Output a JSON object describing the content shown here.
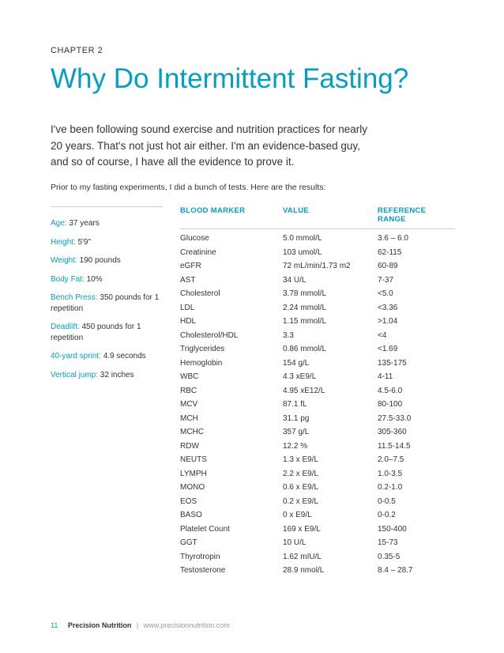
{
  "chapter": {
    "label": "CHAPTER 2",
    "title": "Why Do Intermittent Fasting?"
  },
  "lede": "I've been following sound exercise and nutrition practices for nearly 20 years. That's not just hot air either. I'm an evidence-based guy, and so of course, I have all the evidence to prove it.",
  "sublede": "Prior to my fasting experiments, I did a bunch of tests. Here are the results:",
  "stats": [
    {
      "label": "Age:",
      "value": " 37 years"
    },
    {
      "label": "Height:",
      "value": " 5'9\""
    },
    {
      "label": "Weight:",
      "value": " 190 pounds"
    },
    {
      "label": "Body Fat:",
      "value": " 10%"
    },
    {
      "label": "Bench Press:",
      "value": " 350 pounds for 1 repetition"
    },
    {
      "label": "Deadlift:",
      "value": " 450 pounds for 1 repetition"
    },
    {
      "label": "40-yard sprint:",
      "value": " 4.9 seconds"
    },
    {
      "label": "Vertical jump:",
      "value": " 32 inches"
    }
  ],
  "table": {
    "headers": {
      "marker": "BLOOD MARKER",
      "value": "VALUE",
      "range": "REFERENCE RANGE"
    },
    "rows": [
      {
        "marker": "Glucose",
        "value": "5.0 mmol/L",
        "range": "3.6 – 6.0"
      },
      {
        "marker": "Creatinine",
        "value": "103 umol/L",
        "range": "62-115"
      },
      {
        "marker": "eGFR",
        "value": "72 mL/min/1.73 m2",
        "range": "60-89"
      },
      {
        "marker": "AST",
        "value": "34 U/L",
        "range": "7-37"
      },
      {
        "marker": "Cholesterol",
        "value": "3.78 mmol/L",
        "range": "<5.0"
      },
      {
        "marker": "LDL",
        "value": "2.24 mmol/L",
        "range": "<3.36"
      },
      {
        "marker": "HDL",
        "value": "1.15 mmol/L",
        "range": ">1.04"
      },
      {
        "marker": "Cholesterol/HDL",
        "value": "3.3",
        "range": "<4"
      },
      {
        "marker": "Triglycerides",
        "value": "0.86 mmol/L",
        "range": "<1.69"
      },
      {
        "marker": "Hemoglobin",
        "value": "154 g/L",
        "range": "135-175"
      },
      {
        "marker": "WBC",
        "value": "4.3 xE9/L",
        "range": "4-11"
      },
      {
        "marker": "RBC",
        "value": "4.95 xE12/L",
        "range": "4.5-6.0"
      },
      {
        "marker": "MCV",
        "value": "87.1 fL",
        "range": "80-100"
      },
      {
        "marker": "MCH",
        "value": "31.1 pg",
        "range": "27.5-33.0"
      },
      {
        "marker": "MCHC",
        "value": "357 g/L",
        "range": "305-360"
      },
      {
        "marker": "RDW",
        "value": "12.2 %",
        "range": "11.5-14.5"
      },
      {
        "marker": "NEUTS",
        "value": "1.3 x E9/L",
        "range": "2.0–7.5"
      },
      {
        "marker": "LYMPH",
        "value": "2.2 x E9/L",
        "range": "1.0-3.5"
      },
      {
        "marker": "MONO",
        "value": "0.6 x E9/L",
        "range": "0.2-1.0"
      },
      {
        "marker": "EOS",
        "value": "0.2 x E9/L",
        "range": "0-0.5"
      },
      {
        "marker": "BASO",
        "value": "0 x E9/L",
        "range": "0-0.2"
      },
      {
        "marker": "Platelet Count",
        "value": "169 x E9/L",
        "range": "150-400"
      },
      {
        "marker": "GGT",
        "value": "10 U/L",
        "range": "15-73"
      },
      {
        "marker": "Thyrotropin",
        "value": "1.62 mIU/L",
        "range": "0.35-5"
      },
      {
        "marker": "Testosterone",
        "value": "28.9 nmol/L",
        "range": "8.4 – 28.7"
      }
    ]
  },
  "footer": {
    "page": "11",
    "brand": "Precision Nutrition",
    "sep": "|",
    "url": "www.precisionnutrition.com"
  }
}
